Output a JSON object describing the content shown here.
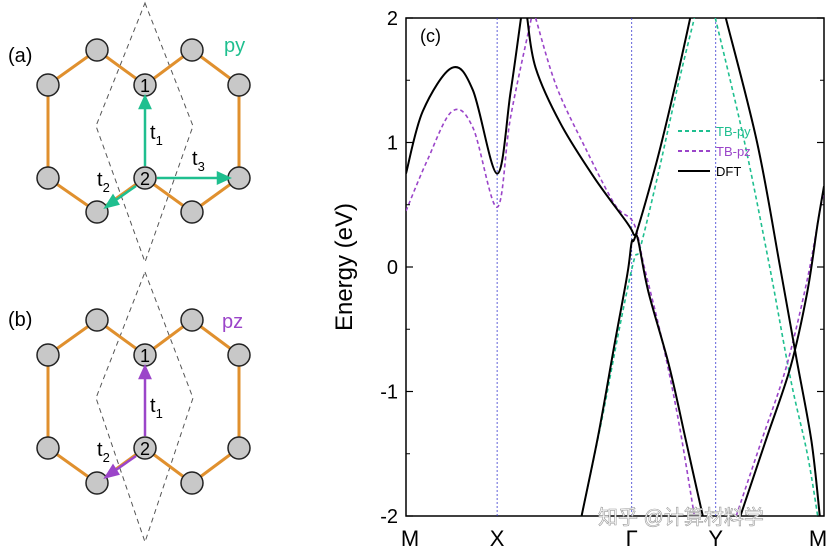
{
  "panel_a": {
    "label": "(a)",
    "orbital": "py",
    "orbital_color": "#1fbf8f",
    "site_1": "1",
    "site_2": "2",
    "hop_t1": "t",
    "hop_t1_sub": "1",
    "hop_t2": "t",
    "hop_t2_sub": "2",
    "hop_t3": "t",
    "hop_t3_sub": "3"
  },
  "panel_b": {
    "label": "(b)",
    "orbital": "pz",
    "orbital_color": "#9b45c9",
    "site_1": "1",
    "site_2": "2",
    "hop_t1": "t",
    "hop_t1_sub": "1",
    "hop_t2": "t",
    "hop_t2_sub": "2"
  },
  "colors": {
    "bond": "#e0902e",
    "atom_fill": "#c8c8c8",
    "py": "#1fbf8f",
    "pz": "#9b45c9",
    "dft": "#000000",
    "vline": "#3a3ad0"
  },
  "chart_data": {
    "type": "line",
    "panel_label": "(c)",
    "ylabel": "Energy (eV)",
    "ylim": [
      -2,
      2
    ],
    "yticks": [
      "-2",
      "-1",
      "0",
      "1",
      "2"
    ],
    "x_ticks": [
      {
        "label": "M",
        "pos": 0.0
      },
      {
        "label": "X",
        "pos": 0.218
      },
      {
        "label": "Γ",
        "pos": 0.54
      },
      {
        "label": "Y",
        "pos": 0.741
      },
      {
        "label": "M",
        "pos": 1.0
      }
    ],
    "legend": [
      {
        "name": "TB-py",
        "color": "#1fbf8f",
        "dash": true
      },
      {
        "name": "TB-pz",
        "color": "#9b45c9",
        "dash": true
      },
      {
        "name": "DFT",
        "color": "#000000",
        "dash": false
      }
    ],
    "series": [
      {
        "name": "DFT",
        "color": "#000000",
        "dash": false,
        "points": [
          [
            0.0,
            0.75
          ],
          [
            0.04,
            1.25
          ],
          [
            0.11,
            1.6
          ],
          [
            0.16,
            1.42
          ],
          [
            0.218,
            0.75
          ],
          [
            0.25,
            1.4
          ],
          [
            0.275,
            2.0
          ]
        ]
      },
      {
        "name": "DFT",
        "color": "#000000",
        "dash": false,
        "points": [
          [
            0.29,
            2.0
          ],
          [
            0.31,
            1.6
          ],
          [
            0.37,
            1.15
          ],
          [
            0.45,
            0.72
          ],
          [
            0.53,
            0.35
          ],
          [
            0.545,
            0.26
          ],
          [
            0.555,
            0.22
          ],
          [
            0.58,
            -0.2
          ],
          [
            0.63,
            -0.8
          ],
          [
            0.67,
            -1.4
          ],
          [
            0.71,
            -2.0
          ]
        ]
      },
      {
        "name": "DFT",
        "color": "#000000",
        "dash": false,
        "points": [
          [
            0.42,
            -2.0
          ],
          [
            0.46,
            -1.35
          ],
          [
            0.5,
            -0.6
          ],
          [
            0.53,
            -0.05
          ],
          [
            0.54,
            0.2
          ],
          [
            0.55,
            0.26
          ],
          [
            0.6,
            0.85
          ],
          [
            0.64,
            1.4
          ],
          [
            0.68,
            2.0
          ]
        ]
      },
      {
        "name": "DFT",
        "color": "#000000",
        "dash": false,
        "points": [
          [
            0.765,
            2.0
          ],
          [
            0.84,
            1.0
          ],
          [
            0.895,
            0.0
          ],
          [
            0.935,
            -0.75
          ],
          [
            0.97,
            -1.4
          ],
          [
            0.99,
            -2.0
          ]
        ]
      },
      {
        "name": "DFT",
        "color": "#000000",
        "dash": false,
        "points": [
          [
            0.8,
            -2.0
          ],
          [
            0.86,
            -1.4
          ],
          [
            0.92,
            -0.8
          ],
          [
            0.96,
            -0.2
          ],
          [
            0.985,
            0.35
          ],
          [
            1.0,
            0.65
          ]
        ]
      },
      {
        "name": "TB-pz",
        "color": "#9b45c9",
        "dash": true,
        "points": [
          [
            0.0,
            0.45
          ],
          [
            0.05,
            0.85
          ],
          [
            0.11,
            1.25
          ],
          [
            0.16,
            1.12
          ],
          [
            0.218,
            0.48
          ],
          [
            0.25,
            1.2
          ],
          [
            0.3,
            2.0
          ]
        ]
      },
      {
        "name": "TB-pz",
        "color": "#9b45c9",
        "dash": true,
        "points": [
          [
            0.31,
            2.0
          ],
          [
            0.36,
            1.45
          ],
          [
            0.43,
            0.95
          ],
          [
            0.5,
            0.5
          ],
          [
            0.545,
            0.35
          ],
          [
            0.57,
            0.0
          ],
          [
            0.61,
            -0.55
          ],
          [
            0.65,
            -1.2
          ],
          [
            0.69,
            -2.0
          ]
        ]
      },
      {
        "name": "TB-py",
        "color": "#1fbf8f",
        "dash": true,
        "points": [
          [
            0.42,
            -2.0
          ],
          [
            0.47,
            -1.2
          ],
          [
            0.51,
            -0.5
          ],
          [
            0.545,
            0.05
          ],
          [
            0.56,
            0.15
          ],
          [
            0.6,
            0.7
          ],
          [
            0.65,
            1.45
          ],
          [
            0.69,
            2.0
          ]
        ]
      },
      {
        "name": "TB-py",
        "color": "#1fbf8f",
        "dash": true,
        "points": [
          [
            0.74,
            2.0
          ],
          [
            0.81,
            1.0
          ],
          [
            0.87,
            0.0
          ],
          [
            0.92,
            -0.9
          ],
          [
            0.96,
            -1.5
          ],
          [
            0.985,
            -2.0
          ]
        ]
      },
      {
        "name": "TB-pz",
        "color": "#9b45c9",
        "dash": true,
        "points": [
          [
            0.79,
            -2.0
          ],
          [
            0.85,
            -1.4
          ],
          [
            0.91,
            -0.8
          ],
          [
            0.96,
            -0.1
          ],
          [
            0.99,
            0.45
          ],
          [
            1.0,
            0.6
          ]
        ]
      }
    ]
  },
  "watermark": "知乎 @计算材料学"
}
